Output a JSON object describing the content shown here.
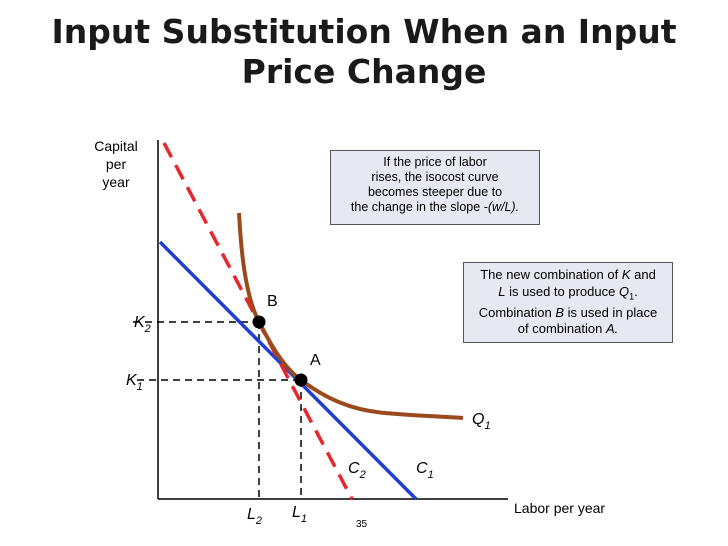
{
  "title": {
    "line1": "Input Substitution When an Input",
    "line2": "Price Change"
  },
  "axes": {
    "y_label": [
      "Capital",
      "per",
      "year"
    ],
    "x_label": "Labor per year"
  },
  "labels": {
    "K2": {
      "main": "K",
      "sub": "2"
    },
    "K1": {
      "main": "K",
      "sub": "1"
    },
    "L2": {
      "main": "L",
      "sub": "2"
    },
    "L1": {
      "main": "L",
      "sub": "1"
    },
    "C2": {
      "main": "C",
      "sub": "2"
    },
    "C1": {
      "main": "C",
      "sub": "1"
    },
    "Q1": {
      "main": "Q",
      "sub": "1"
    },
    "point_A": "A",
    "point_B": "B"
  },
  "box_top": {
    "lines": [
      "If the price of labor",
      "rises, the isocost curve",
      "becomes steeper due to"
    ],
    "last_prefix": "the change in the slope ",
    "last_italic": "-(w/L)."
  },
  "box_right": {
    "line1_a": "The new combination of ",
    "line1_k": "K",
    "line1_b": " and",
    "line2_l": "L",
    "line2_b": " is used to produce ",
    "line2_q": "Q",
    "line2_q_sub": "1",
    "line2_end": ".",
    "line3_a": "Combination ",
    "line3_b": "B",
    "line3_c": " is used in place",
    "line4_a": "of combination ",
    "line4_b": "A."
  },
  "page_number": "35",
  "colors": {
    "isocost_C1": "#1f3fd0",
    "isocost_C2": "#e8262c",
    "isoquant_Q1": "#9a4a1c",
    "box_bg": "#e6e9f2"
  }
}
